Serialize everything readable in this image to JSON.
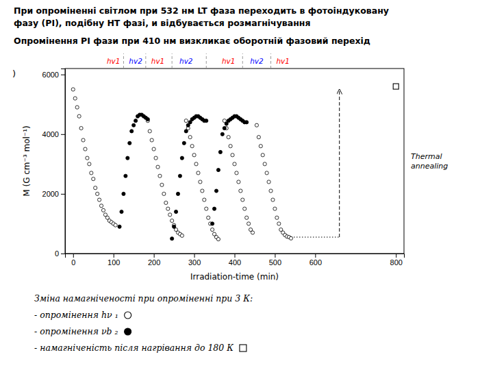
{
  "chart_data": {
    "type": "scatter",
    "title": "При опроміненні світлом при 532 нм LT фаза переходить в фотоіндуковану\nфазу (PI), подібну HT фазі, и відбувається розмагнічування",
    "subtitle": "Опромінення PI фази при 410 нм визкликає оборотній фазовий перехід",
    "x_label": "Irradiation-time (min)",
    "y_label": "M (G cm⁻³ mol⁻¹)",
    "xlim": [
      -20,
      820
    ],
    "ylim": [
      0,
      6200
    ],
    "xticks": [
      0,
      100,
      200,
      300,
      400,
      500,
      600,
      800
    ],
    "yticks": [
      0,
      2000,
      4000,
      6000
    ],
    "grid": false,
    "legend": "bottom",
    "series": [
      {
        "name": "- опромінення hν ₁",
        "marker": "circle-open",
        "color": "black",
        "x": [
          0,
          5,
          10,
          15,
          20,
          25,
          30,
          35,
          40,
          45,
          50,
          55,
          60,
          65,
          70,
          75,
          80,
          85,
          90,
          95,
          100,
          105,
          185,
          190,
          195,
          200,
          205,
          210,
          215,
          220,
          225,
          230,
          235,
          240,
          245,
          250,
          255,
          260,
          265,
          270,
          280,
          285,
          290,
          295,
          300,
          305,
          310,
          315,
          320,
          325,
          330,
          335,
          340,
          345,
          350,
          355,
          360,
          375,
          380,
          385,
          390,
          395,
          400,
          405,
          410,
          415,
          420,
          425,
          430,
          435,
          440,
          445,
          455,
          460,
          465,
          470,
          475,
          480,
          485,
          490,
          495,
          500,
          505,
          510,
          515,
          520,
          525,
          530,
          535,
          540
        ],
        "values": [
          5500,
          5200,
          4900,
          4600,
          4200,
          3800,
          3500,
          3200,
          3000,
          2700,
          2500,
          2200,
          2000,
          1800,
          1600,
          1450,
          1300,
          1200,
          1100,
          1050,
          1000,
          950,
          4450,
          4100,
          3800,
          3500,
          3200,
          2900,
          2600,
          2300,
          2000,
          1700,
          1500,
          1300,
          1100,
          950,
          800,
          700,
          650,
          600,
          4450,
          4200,
          3900,
          3600,
          3300,
          3000,
          2700,
          2400,
          2100,
          1800,
          1500,
          1200,
          1000,
          800,
          650,
          550,
          480,
          4450,
          4200,
          3900,
          3600,
          3300,
          3000,
          2700,
          2400,
          2100,
          1800,
          1500,
          1200,
          1000,
          800,
          700,
          4300,
          3900,
          3600,
          3300,
          3000,
          2700,
          2400,
          2100,
          1800,
          1500,
          1200,
          1000,
          800,
          700,
          620,
          570,
          550,
          510
        ]
      },
      {
        "name": "- опромінення νb ₂",
        "marker": "circle",
        "color": "black",
        "x": [
          115,
          120,
          125,
          130,
          135,
          140,
          145,
          150,
          155,
          160,
          165,
          170,
          175,
          180,
          185,
          245,
          250,
          255,
          260,
          265,
          270,
          275,
          280,
          285,
          290,
          295,
          300,
          305,
          310,
          315,
          320,
          325,
          330,
          345,
          350,
          355,
          360,
          365,
          370,
          375,
          380,
          385,
          390,
          395,
          400,
          405,
          410,
          415,
          420,
          425,
          430
        ],
        "values": [
          900,
          1400,
          2000,
          2600,
          3200,
          3700,
          4100,
          4300,
          4450,
          4600,
          4650,
          4650,
          4600,
          4550,
          4500,
          500,
          900,
          1400,
          2000,
          2600,
          3200,
          3700,
          4100,
          4300,
          4400,
          4500,
          4550,
          4600,
          4600,
          4550,
          4500,
          4450,
          4450,
          1000,
          1500,
          2100,
          2800,
          3400,
          4000,
          4200,
          4350,
          4450,
          4500,
          4550,
          4600,
          4600,
          4550,
          4500,
          4450,
          4400,
          4400
        ]
      },
      {
        "name": "- намагніченість після нагрівання до 180 К",
        "marker": "square-open",
        "color": "black",
        "x": [
          800
        ],
        "values": [
          5600
        ]
      }
    ],
    "annotations": [
      {
        "kind": "legend_heading",
        "text": "Зміна намагніченості при опроміненні при 3 К:"
      },
      {
        "kind": "panel_label",
        "text": ")"
      },
      {
        "kind": "hline",
        "y": 550,
        "x_start": 540,
        "x_end": 658,
        "line_style": "dotted"
      },
      {
        "kind": "arrow",
        "x": 660,
        "y_start": 550,
        "y_end": 5500,
        "text": "Thermal\nannealing",
        "line_style": "dashed"
      },
      {
        "kind": "band_boundary",
        "x": 125
      },
      {
        "kind": "band_boundary",
        "x": 180
      },
      {
        "kind": "band_boundary",
        "x": 245
      },
      {
        "kind": "band_boundary",
        "x": 330
      },
      {
        "kind": "band_boundary",
        "x": 420
      },
      {
        "kind": "band_boundary",
        "x": 490
      },
      {
        "kind": "band_label",
        "x": 100,
        "text": "hv1",
        "color": "red"
      },
      {
        "kind": "band_label",
        "x": 155,
        "text": "hv2",
        "color": "blue"
      },
      {
        "kind": "band_label",
        "x": 210,
        "text": "hv1",
        "color": "red"
      },
      {
        "kind": "band_label",
        "x": 280,
        "text": "hv2",
        "color": "blue"
      },
      {
        "kind": "band_label",
        "x": 385,
        "text": "hv1",
        "color": "red"
      },
      {
        "kind": "band_label",
        "x": 455,
        "text": "hv2",
        "color": "blue"
      },
      {
        "kind": "band_label",
        "x": 520,
        "text": "hv1",
        "color": "red"
      }
    ]
  }
}
